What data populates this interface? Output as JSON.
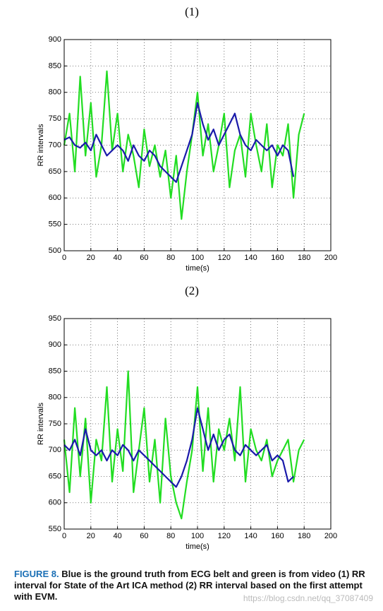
{
  "chart_data": [
    {
      "type": "line",
      "title": "(1)",
      "x_label": "time(s)",
      "y_label": "RR intervals",
      "x": [
        0,
        4,
        8,
        12,
        16,
        20,
        24,
        28,
        32,
        36,
        40,
        44,
        48,
        52,
        56,
        60,
        64,
        68,
        72,
        76,
        80,
        84,
        88,
        92,
        96,
        100,
        104,
        108,
        112,
        116,
        120,
        124,
        128,
        132,
        136,
        140,
        144,
        148,
        152,
        156,
        160,
        164,
        168,
        172,
        176,
        180
      ],
      "series": [
        {
          "name": "green",
          "color": "#22dd22",
          "values": [
            700,
            760,
            650,
            830,
            680,
            780,
            640,
            700,
            840,
            690,
            760,
            650,
            720,
            680,
            620,
            730,
            660,
            700,
            640,
            690,
            600,
            680,
            560,
            650,
            720,
            800,
            680,
            740,
            650,
            700,
            760,
            620,
            690,
            720,
            640,
            760,
            700,
            650,
            740,
            620,
            700,
            680,
            740,
            600,
            720,
            760
          ]
        },
        {
          "name": "blue",
          "color": "#1a1aaa",
          "values": [
            710,
            715,
            700,
            695,
            705,
            690,
            720,
            700,
            680,
            690,
            700,
            690,
            670,
            700,
            680,
            670,
            690,
            680,
            660,
            650,
            640,
            630,
            660,
            690,
            720,
            780,
            740,
            710,
            730,
            700,
            720,
            740,
            760,
            720,
            700,
            690,
            710,
            700,
            690,
            700,
            680,
            700,
            690,
            640,
            null,
            null
          ]
        }
      ],
      "xlim": [
        0,
        200
      ],
      "xticks": [
        0,
        20,
        40,
        60,
        80,
        100,
        120,
        140,
        160,
        180,
        200
      ],
      "ylim": [
        500,
        900
      ],
      "yticks": [
        500,
        550,
        600,
        650,
        700,
        750,
        800,
        850,
        900
      ],
      "grid": true
    },
    {
      "type": "line",
      "title": "(2)",
      "x_label": "time(s)",
      "y_label": "RR intervals",
      "x": [
        0,
        4,
        8,
        12,
        16,
        20,
        24,
        28,
        32,
        36,
        40,
        44,
        48,
        52,
        56,
        60,
        64,
        68,
        72,
        76,
        80,
        84,
        88,
        92,
        96,
        100,
        104,
        108,
        112,
        116,
        120,
        124,
        128,
        132,
        136,
        140,
        144,
        148,
        152,
        156,
        160,
        164,
        168,
        172,
        176,
        180
      ],
      "series": [
        {
          "name": "green",
          "color": "#22dd22",
          "values": [
            720,
            620,
            780,
            650,
            760,
            600,
            720,
            680,
            820,
            640,
            740,
            660,
            850,
            620,
            700,
            780,
            640,
            720,
            600,
            760,
            650,
            600,
            570,
            640,
            700,
            820,
            660,
            780,
            640,
            740,
            700,
            760,
            680,
            820,
            640,
            740,
            700,
            680,
            720,
            650,
            680,
            700,
            720,
            640,
            700,
            720
          ]
        },
        {
          "name": "blue",
          "color": "#1a1aaa",
          "values": [
            710,
            700,
            720,
            690,
            740,
            700,
            690,
            700,
            680,
            700,
            690,
            710,
            700,
            680,
            700,
            690,
            680,
            670,
            660,
            650,
            640,
            630,
            650,
            680,
            720,
            780,
            740,
            700,
            730,
            700,
            720,
            730,
            700,
            690,
            710,
            700,
            690,
            700,
            710,
            680,
            690,
            680,
            640,
            650,
            null,
            null
          ]
        }
      ],
      "xlim": [
        0,
        200
      ],
      "xticks": [
        0,
        20,
        40,
        60,
        80,
        100,
        120,
        140,
        160,
        180,
        200
      ],
      "ylim": [
        550,
        950
      ],
      "yticks": [
        550,
        600,
        650,
        700,
        750,
        800,
        850,
        900,
        950
      ],
      "grid": true
    }
  ],
  "caption": {
    "label": "FIGURE 8.",
    "text": "Blue is the ground truth from ECG belt and green is from video (1) RR interval for State of the Art ICA method (2) RR interval based on the first attempt with EVM."
  },
  "watermark": "https://blog.csdn.net/qq_37087409"
}
